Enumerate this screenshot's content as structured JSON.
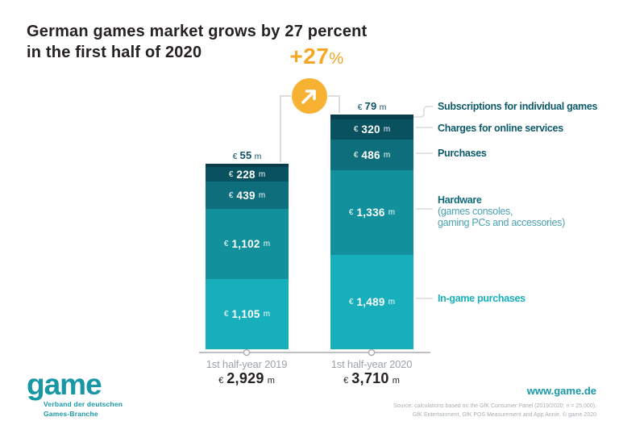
{
  "title": {
    "line1": "German games market grows by 27 percent",
    "line2": "in the first half of 2020"
  },
  "growth": {
    "value": "+27",
    "percent_sign": "%",
    "icon": "arrow-up-right"
  },
  "colors": {
    "accent_orange_badge": "#F7B233",
    "accent_orange_text": "#F5A623",
    "brand_teal": "#1898A6",
    "dark_text": "#262221",
    "gray_text": "#9DA3A8",
    "connector_gray": "#DCDCDC"
  },
  "chart_data": {
    "type": "bar",
    "stacked": true,
    "categories": [
      "1st half-year 2019",
      "1st half-year 2020"
    ],
    "totals": [
      2929,
      3710
    ],
    "totals_display": [
      "2,929",
      "3,710"
    ],
    "unit_prefix": "€",
    "unit_suffix": "m",
    "growth_label": "+27%",
    "series": [
      {
        "name": "Subscriptions for individual games",
        "values": [
          55,
          79
        ],
        "color": "#083E4C"
      },
      {
        "name": "Charges for online services",
        "values": [
          228,
          320
        ],
        "color": "#0A5160"
      },
      {
        "name": "Purchases",
        "values": [
          439,
          486
        ],
        "color": "#0F6E7B"
      },
      {
        "name": "Hardware (games consoles, gaming PCs and accessories)",
        "values": [
          1102,
          1336
        ],
        "color": "#12919D"
      },
      {
        "name": "In-game purchases",
        "values": [
          1105,
          1489
        ],
        "color": "#17AFBC"
      }
    ],
    "value_labels_2019": [
      "€ 55 m",
      "€ 228 m",
      "€ 439 m",
      "€ 1,102 m",
      "€ 1,105 m"
    ],
    "value_labels_2020": [
      "€ 79 m",
      "€ 320 m",
      "€ 486 m",
      "€ 1,336 m",
      "€ 1,489 m"
    ],
    "legend_position": "right",
    "grid": false
  },
  "legend": {
    "items": [
      {
        "label": "Subscriptions for individual games",
        "color": "#0C5A69"
      },
      {
        "label": "Charges for online services",
        "color": "#0C5A69"
      },
      {
        "label": "Purchases",
        "color": "#0C5A69"
      },
      {
        "label": "Hardware",
        "sublabel1": "(games consoles,",
        "sublabel2": "gaming PCs and accessories)",
        "color": "#0F6B7A",
        "sub_color": "#49A2B1"
      },
      {
        "label": "In-game purchases",
        "color": "#17AFBC"
      }
    ]
  },
  "footer": {
    "logo_text": "game",
    "logo_tagline_line1": "Verband der deutschen",
    "logo_tagline_line2": "Games-Branche",
    "website": "www.game.de",
    "source_line1": "Source: calculations based on the GfK Consumer Panel (2019/2020; n = 25,000),",
    "source_line2": "GfK Entertainment, GfK POS Measurement and App Annie. © game 2020"
  }
}
